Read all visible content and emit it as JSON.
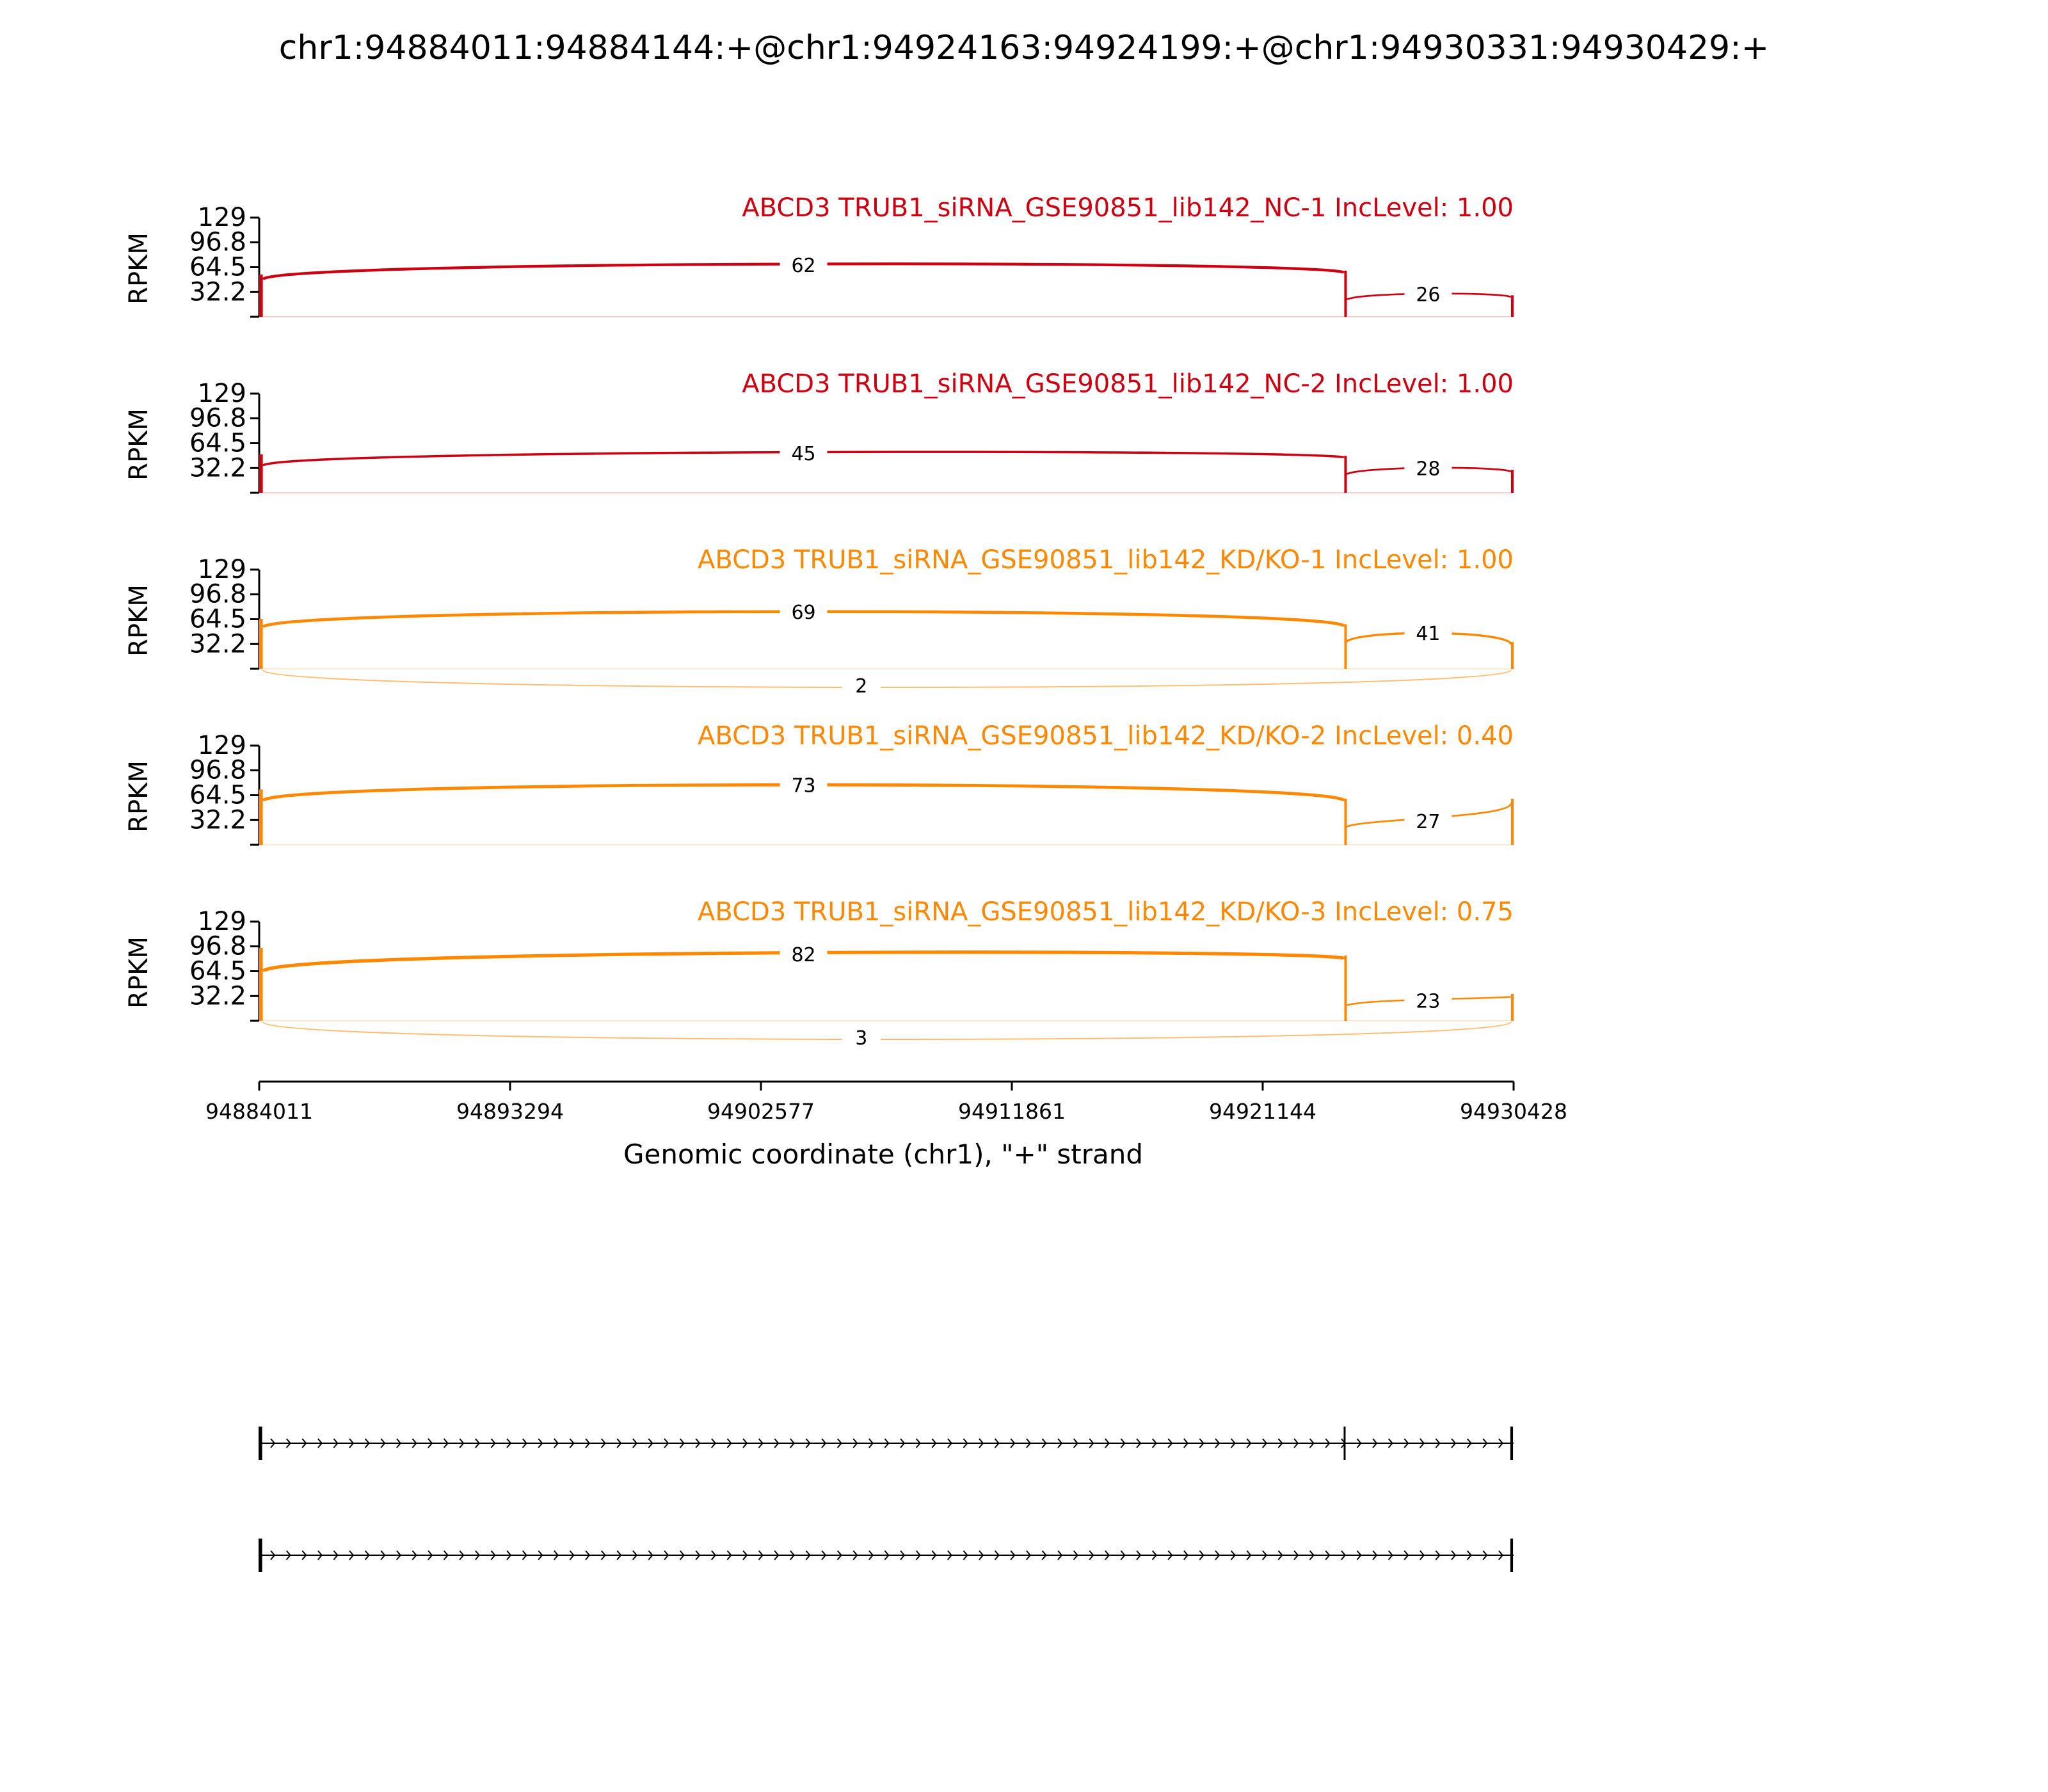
{
  "chart_data": {
    "type": "sashimi",
    "title": "chr1:94884011:94884144:+@chr1:94924163:94924199:+@chr1:94930331:94930429:+",
    "xlabel": "Genomic coordinate (chr1), \"+\" strand",
    "ylabel": "RPKM",
    "xlim": [
      94884011,
      94930428
    ],
    "x_ticks": [
      "94884011",
      "94893294",
      "94902577",
      "94911861",
      "94921144",
      "94930428"
    ],
    "ylim": [
      0,
      129
    ],
    "y_ticks": [
      "129",
      "96.8",
      "64.5",
      "32.2"
    ],
    "exons": [
      {
        "start": 94884011,
        "end": 94884144
      },
      {
        "start": 94924163,
        "end": 94924199
      },
      {
        "start": 94930331,
        "end": 94930429
      }
    ],
    "tracks": [
      {
        "name": "ABCD3 TRUB1_siRNA_GSE90851_lib142_NC-1 IncLevel: 1.00",
        "color": "#cc0011",
        "coverage": {
          "exon1": 55,
          "exon2": 60,
          "exon3": 28
        },
        "junctions": [
          {
            "from": 94884144,
            "to": 94924163,
            "count": 62,
            "side": "above"
          },
          {
            "from": 94924199,
            "to": 94930331,
            "count": 26,
            "side": "above"
          }
        ]
      },
      {
        "name": "ABCD3 TRUB1_siRNA_GSE90851_lib142_NC-2 IncLevel: 1.00",
        "color": "#cc0011",
        "coverage": {
          "exon1": 50,
          "exon2": 48,
          "exon3": 30
        },
        "junctions": [
          {
            "from": 94884144,
            "to": 94924163,
            "count": 45,
            "side": "above"
          },
          {
            "from": 94924199,
            "to": 94930331,
            "count": 28,
            "side": "above"
          }
        ]
      },
      {
        "name": "ABCD3 TRUB1_siRNA_GSE90851_lib142_KD/KO-1 IncLevel: 1.00",
        "color": "#ff8800",
        "coverage": {
          "exon1": 65,
          "exon2": 58,
          "exon3": 35
        },
        "junctions": [
          {
            "from": 94884144,
            "to": 94924163,
            "count": 69,
            "side": "above"
          },
          {
            "from": 94924199,
            "to": 94930331,
            "count": 41,
            "side": "above"
          },
          {
            "from": 94884144,
            "to": 94930331,
            "count": 2,
            "side": "below"
          }
        ]
      },
      {
        "name": "ABCD3 TRUB1_siRNA_GSE90851_lib142_KD/KO-2 IncLevel: 0.40",
        "color": "#ff8800",
        "coverage": {
          "exon1": 72,
          "exon2": 60,
          "exon3": 60
        },
        "junctions": [
          {
            "from": 94884144,
            "to": 94924163,
            "count": 73,
            "side": "above"
          },
          {
            "from": 94924199,
            "to": 94930331,
            "count": 27,
            "side": "above"
          }
        ]
      },
      {
        "name": "ABCD3 TRUB1_siRNA_GSE90851_lib142_KD/KO-3 IncLevel: 0.75",
        "color": "#ff8800",
        "coverage": {
          "exon1": 95,
          "exon2": 85,
          "exon3": 35
        },
        "junctions": [
          {
            "from": 94884144,
            "to": 94924163,
            "count": 82,
            "side": "above"
          },
          {
            "from": 94924199,
            "to": 94930331,
            "count": 23,
            "side": "above"
          },
          {
            "from": 94884144,
            "to": 94930331,
            "count": 3,
            "side": "below"
          }
        ]
      }
    ],
    "isoforms": [
      {
        "exons": [
          [
            94884011,
            94884144
          ],
          [
            94924163,
            94924199
          ],
          [
            94930331,
            94930429
          ]
        ]
      },
      {
        "exons": [
          [
            94884011,
            94884144
          ],
          [
            94930331,
            94930429
          ]
        ]
      }
    ]
  }
}
